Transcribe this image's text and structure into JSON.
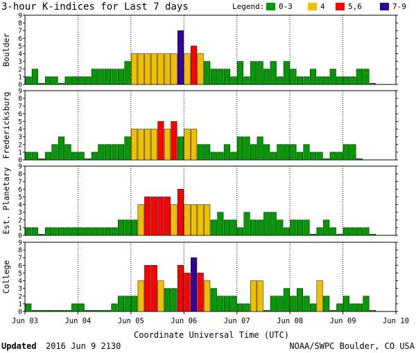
{
  "chart_data": {
    "type": "bar",
    "title": "3-hour K-indices for Last 7 days",
    "legend": {
      "label": "Legend:",
      "placement": "top-right",
      "items": [
        {
          "label": "0-3",
          "color": "#009900"
        },
        {
          "label": "4",
          "color": "#f0c000"
        },
        {
          "label": "5,6",
          "color": "#ff0000"
        },
        {
          "label": "7-9",
          "color": "#330099"
        }
      ]
    },
    "ylim": [
      0,
      9
    ],
    "yticks": [
      0,
      1,
      2,
      3,
      4,
      5,
      6,
      7,
      8,
      9
    ],
    "x_tick_labels": [
      "Jun 03",
      "Jun 04",
      "Jun 05",
      "Jun 06",
      "Jun 07",
      "Jun 08",
      "Jun 09",
      "Jun 10"
    ],
    "xlabel": "Coordinate Universal Time (UTC)",
    "bars_per_day": 8,
    "series": [
      {
        "name": "Boulder",
        "values": [
          1,
          2,
          0,
          1,
          1,
          0,
          1,
          1,
          1,
          1,
          2,
          2,
          2,
          2,
          2,
          3,
          4,
          4,
          4,
          4,
          4,
          4,
          4,
          7,
          4,
          5,
          4,
          3,
          2,
          2,
          2,
          1,
          3,
          1,
          3,
          3,
          2,
          3,
          1,
          3,
          2,
          1,
          1,
          2,
          1,
          1,
          2,
          1,
          1,
          1,
          2,
          2,
          0
        ]
      },
      {
        "name": "Fredericksburg",
        "values": [
          1,
          1,
          0,
          1,
          2,
          3,
          2,
          1,
          1,
          0,
          1,
          2,
          2,
          2,
          2,
          3,
          4,
          4,
          4,
          4,
          5,
          4,
          5,
          3,
          4,
          4,
          2,
          2,
          1,
          1,
          2,
          1,
          3,
          3,
          2,
          3,
          2,
          1,
          2,
          2,
          2,
          1,
          2,
          1,
          1,
          0,
          1,
          1,
          2,
          2,
          0
        ]
      },
      {
        "name": "Est. Planetary",
        "values": [
          1,
          1,
          0,
          1,
          1,
          1,
          1,
          1,
          1,
          1,
          1,
          1,
          1,
          1,
          2,
          2,
          2,
          4,
          5,
          5,
          5,
          5,
          4,
          6,
          4,
          4,
          4,
          4,
          2,
          3,
          2,
          2,
          1,
          3,
          2,
          2,
          3,
          3,
          2,
          1,
          2,
          2,
          2,
          0,
          1,
          2,
          1,
          0,
          1,
          1,
          1,
          1,
          0
        ]
      },
      {
        "name": "College",
        "values": [
          1,
          0,
          0,
          0,
          0,
          0,
          0,
          1,
          1,
          0,
          0,
          0,
          0,
          1,
          2,
          2,
          2,
          4,
          6,
          6,
          4,
          3,
          3,
          6,
          5,
          7,
          5,
          4,
          3,
          2,
          2,
          2,
          1,
          1,
          4,
          4,
          0,
          2,
          2,
          3,
          2,
          3,
          2,
          1,
          4,
          2,
          0,
          1,
          2,
          1,
          1,
          2,
          0
        ]
      }
    ]
  },
  "footer": {
    "updated_label": "Updated",
    "updated_value": "2016 Jun  9 2130",
    "source": "NOAA/SWPC Boulder, CO USA"
  }
}
